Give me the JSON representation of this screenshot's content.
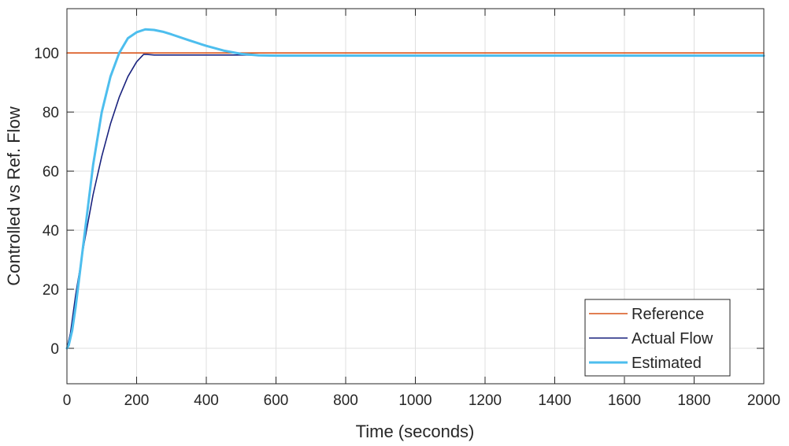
{
  "chart_data": {
    "type": "line",
    "title": "",
    "xlabel": "Time (seconds)",
    "ylabel": "Controlled vs Ref. Flow",
    "xlim": [
      0,
      2000
    ],
    "ylim": [
      -12,
      115
    ],
    "xticks": [
      0,
      200,
      400,
      600,
      800,
      1000,
      1200,
      1400,
      1600,
      1800,
      2000
    ],
    "yticks": [
      0,
      20,
      40,
      60,
      80,
      100
    ],
    "grid": true,
    "legend_position": "bottom-right",
    "series": [
      {
        "name": "Reference",
        "color": "#d95319",
        "x": [
          0,
          2000
        ],
        "y": [
          100,
          100
        ]
      },
      {
        "name": "Actual Flow",
        "color": "#1a237e",
        "x": [
          0,
          10,
          25,
          50,
          75,
          100,
          125,
          150,
          175,
          200,
          220,
          230,
          250,
          300,
          400,
          500,
          600,
          800,
          1000,
          1200,
          1400,
          1600,
          1800,
          2000
        ],
        "y": [
          0,
          5,
          18,
          36,
          52,
          65,
          76,
          85,
          92,
          97,
          99.5,
          99.5,
          99.3,
          99.3,
          99.3,
          99.3,
          99.2,
          99.2,
          99.2,
          99.2,
          99.2,
          99.2,
          99.2,
          99.2
        ]
      },
      {
        "name": "Estimated",
        "color": "#4dbeee",
        "x": [
          0,
          5,
          15,
          25,
          50,
          75,
          100,
          125,
          150,
          175,
          200,
          225,
          250,
          275,
          300,
          350,
          400,
          450,
          500,
          550,
          600,
          700,
          800,
          1000,
          1200,
          1400,
          1600,
          1800,
          2000
        ],
        "y": [
          0,
          1,
          6,
          14,
          38,
          62,
          80,
          92,
          100,
          105,
          107,
          108,
          107.8,
          107.2,
          106.3,
          104.3,
          102.4,
          100.8,
          99.7,
          99.2,
          99.1,
          99.1,
          99.1,
          99.1,
          99.1,
          99.1,
          99.1,
          99.1,
          99.1
        ]
      }
    ]
  }
}
